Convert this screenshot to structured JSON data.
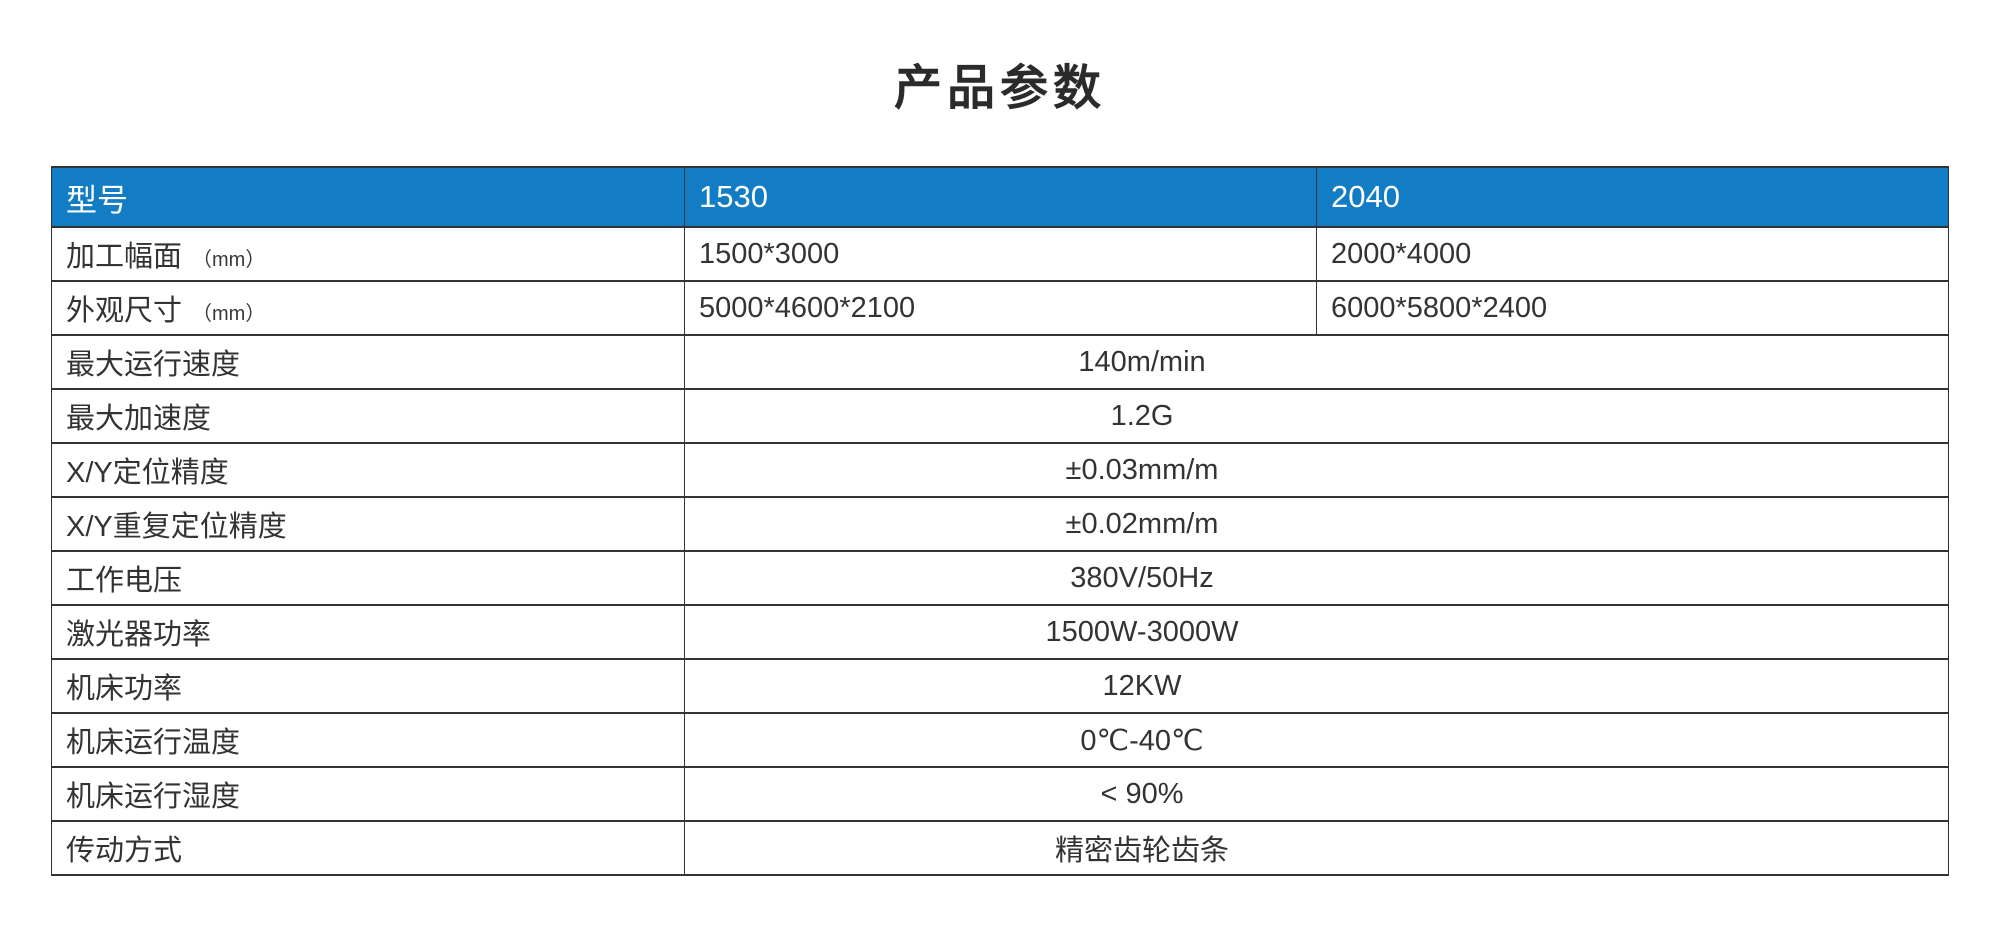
{
  "page": {
    "title": "产品参数",
    "background": "#ffffff"
  },
  "table": {
    "accent_color": "#127dc4",
    "border_color": "#333333",
    "header": {
      "col1": "型号",
      "col2": "1530",
      "col3": "2040"
    },
    "rows": [
      {
        "label": "加工幅面",
        "unit": "（mm）",
        "type": "split",
        "val1": "1500*3000",
        "val2": "2000*4000"
      },
      {
        "label": "外观尺寸",
        "unit": "（mm）",
        "type": "split",
        "val1": "5000*4600*2100",
        "val2": "6000*5800*2400"
      },
      {
        "label": "最大运行速度",
        "type": "merged",
        "value": "140m/min"
      },
      {
        "label": "最大加速度",
        "type": "merged",
        "value": "1.2G"
      },
      {
        "label": "X/Y定位精度",
        "type": "merged",
        "value": "±0.03mm/m"
      },
      {
        "label": "X/Y重复定位精度",
        "type": "merged",
        "value": "±0.02mm/m"
      },
      {
        "label": "工作电压",
        "type": "merged",
        "value": "380V/50Hz"
      },
      {
        "label": "激光器功率",
        "type": "merged",
        "value": "1500W-3000W"
      },
      {
        "label": "机床功率",
        "type": "merged",
        "value": "12KW"
      },
      {
        "label": "机床运行温度",
        "type": "merged",
        "value": "0℃-40℃"
      },
      {
        "label": "机床运行湿度",
        "type": "merged",
        "value": "< 90%"
      },
      {
        "label": "传动方式",
        "type": "merged",
        "value": "精密齿轮齿条"
      }
    ]
  }
}
